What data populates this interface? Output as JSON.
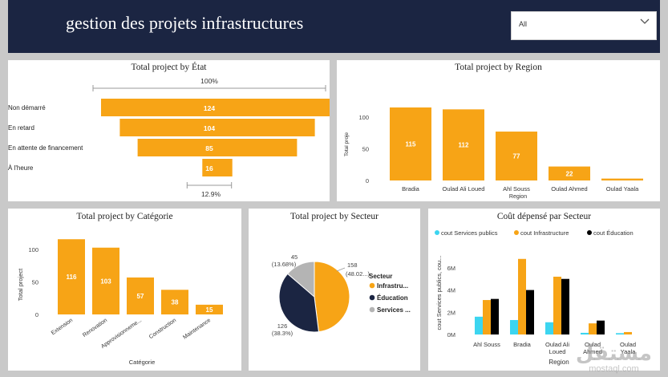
{
  "header": {
    "title": "gestion des projets infrastructures",
    "filter_value": "All"
  },
  "colors": {
    "orange": "#F7A416",
    "navy": "#1B2542",
    "cyan": "#3CD5F0",
    "black": "#000000",
    "grey": "#B4B4B4"
  },
  "panels": {
    "etat": {
      "title": "Total project by État",
      "top_pct": "100%",
      "bottom_pct": "12.9%",
      "items": [
        {
          "label": "Non démarré",
          "value": 124
        },
        {
          "label": "En retard",
          "value": 104
        },
        {
          "label": "En attente de financement",
          "value": 85
        },
        {
          "label": "À l'heure",
          "value": 16
        }
      ]
    },
    "region": {
      "title": "Total project by Region",
      "chart_data": {
        "type": "bar",
        "title": "Total project by Region",
        "categories": [
          "Bradia",
          "Oulad Ali Loued",
          "Ahl Souss",
          "Oulad Ahmed",
          "Oulad Yaala"
        ],
        "values": [
          115,
          112,
          77,
          22,
          3
        ],
        "value_labels": [
          "115",
          "112",
          "77",
          "22",
          ""
        ],
        "xlabel": "Region",
        "ylabel": "Total proje",
        "yticks": [
          0,
          50,
          100
        ],
        "ylim": [
          0,
          120
        ]
      }
    },
    "categorie": {
      "title": "Total project by Catégorie",
      "chart_data": {
        "type": "bar",
        "title": "Total project by Catégorie",
        "categories": [
          "Extension",
          "Renovation",
          "Approvisionneme...",
          "Construction",
          "Maintenance"
        ],
        "values": [
          116,
          103,
          57,
          38,
          15
        ],
        "xlabel": "Catégorie",
        "ylabel": "Total project",
        "yticks": [
          0,
          50,
          100
        ],
        "ylim": [
          0,
          120
        ]
      }
    },
    "secteur": {
      "title": "Total project by Secteur",
      "legend_title": "Secteur",
      "chart_data": {
        "type": "pie",
        "title": "Total project by Secteur",
        "slices": [
          {
            "name": "Infrastru...",
            "value": 158,
            "pct": "(48.02...)"
          },
          {
            "name": "Éducation",
            "value": 126,
            "pct": "(38.3%)"
          },
          {
            "name": "Services ...",
            "value": 45,
            "pct": "(13.68%)"
          }
        ]
      }
    },
    "cout": {
      "title": "Coût dépensé par Secteur",
      "chart_data": {
        "type": "bar",
        "title": "Coût dépensé par Secteur",
        "categories": [
          "Ahl Souss",
          "Bradia",
          "Oulad Ali Loued",
          "Oulad Ahmed",
          "Oulad Yaala"
        ],
        "category_lines": [
          [
            "Ahl Souss"
          ],
          [
            "Bradia"
          ],
          [
            "Oulad Ali",
            "Loued"
          ],
          [
            "Oulad",
            "Ahmed"
          ],
          [
            "Oulad",
            "Yaala"
          ]
        ],
        "series": [
          {
            "name": "cout Services publics",
            "values": [
              1.6,
              1.3,
              1.1,
              0.15,
              0.12
            ]
          },
          {
            "name": "cout Infrastructure",
            "values": [
              3.1,
              6.8,
              5.2,
              1.0,
              0.22
            ]
          },
          {
            "name": "cout Éducation",
            "values": [
              3.2,
              4.0,
              5.0,
              1.25,
              0
            ]
          }
        ],
        "xlabel": "Region",
        "ylabel": "cout Services publics, cou...",
        "yticks": [
          "0M",
          "2M",
          "4M",
          "6M"
        ],
        "ytick_values": [
          0,
          2,
          4,
          6
        ],
        "ylim": [
          0,
          7
        ]
      }
    }
  },
  "watermark": {
    "arabic": "مستقل",
    "latin": "mostaql.com"
  }
}
